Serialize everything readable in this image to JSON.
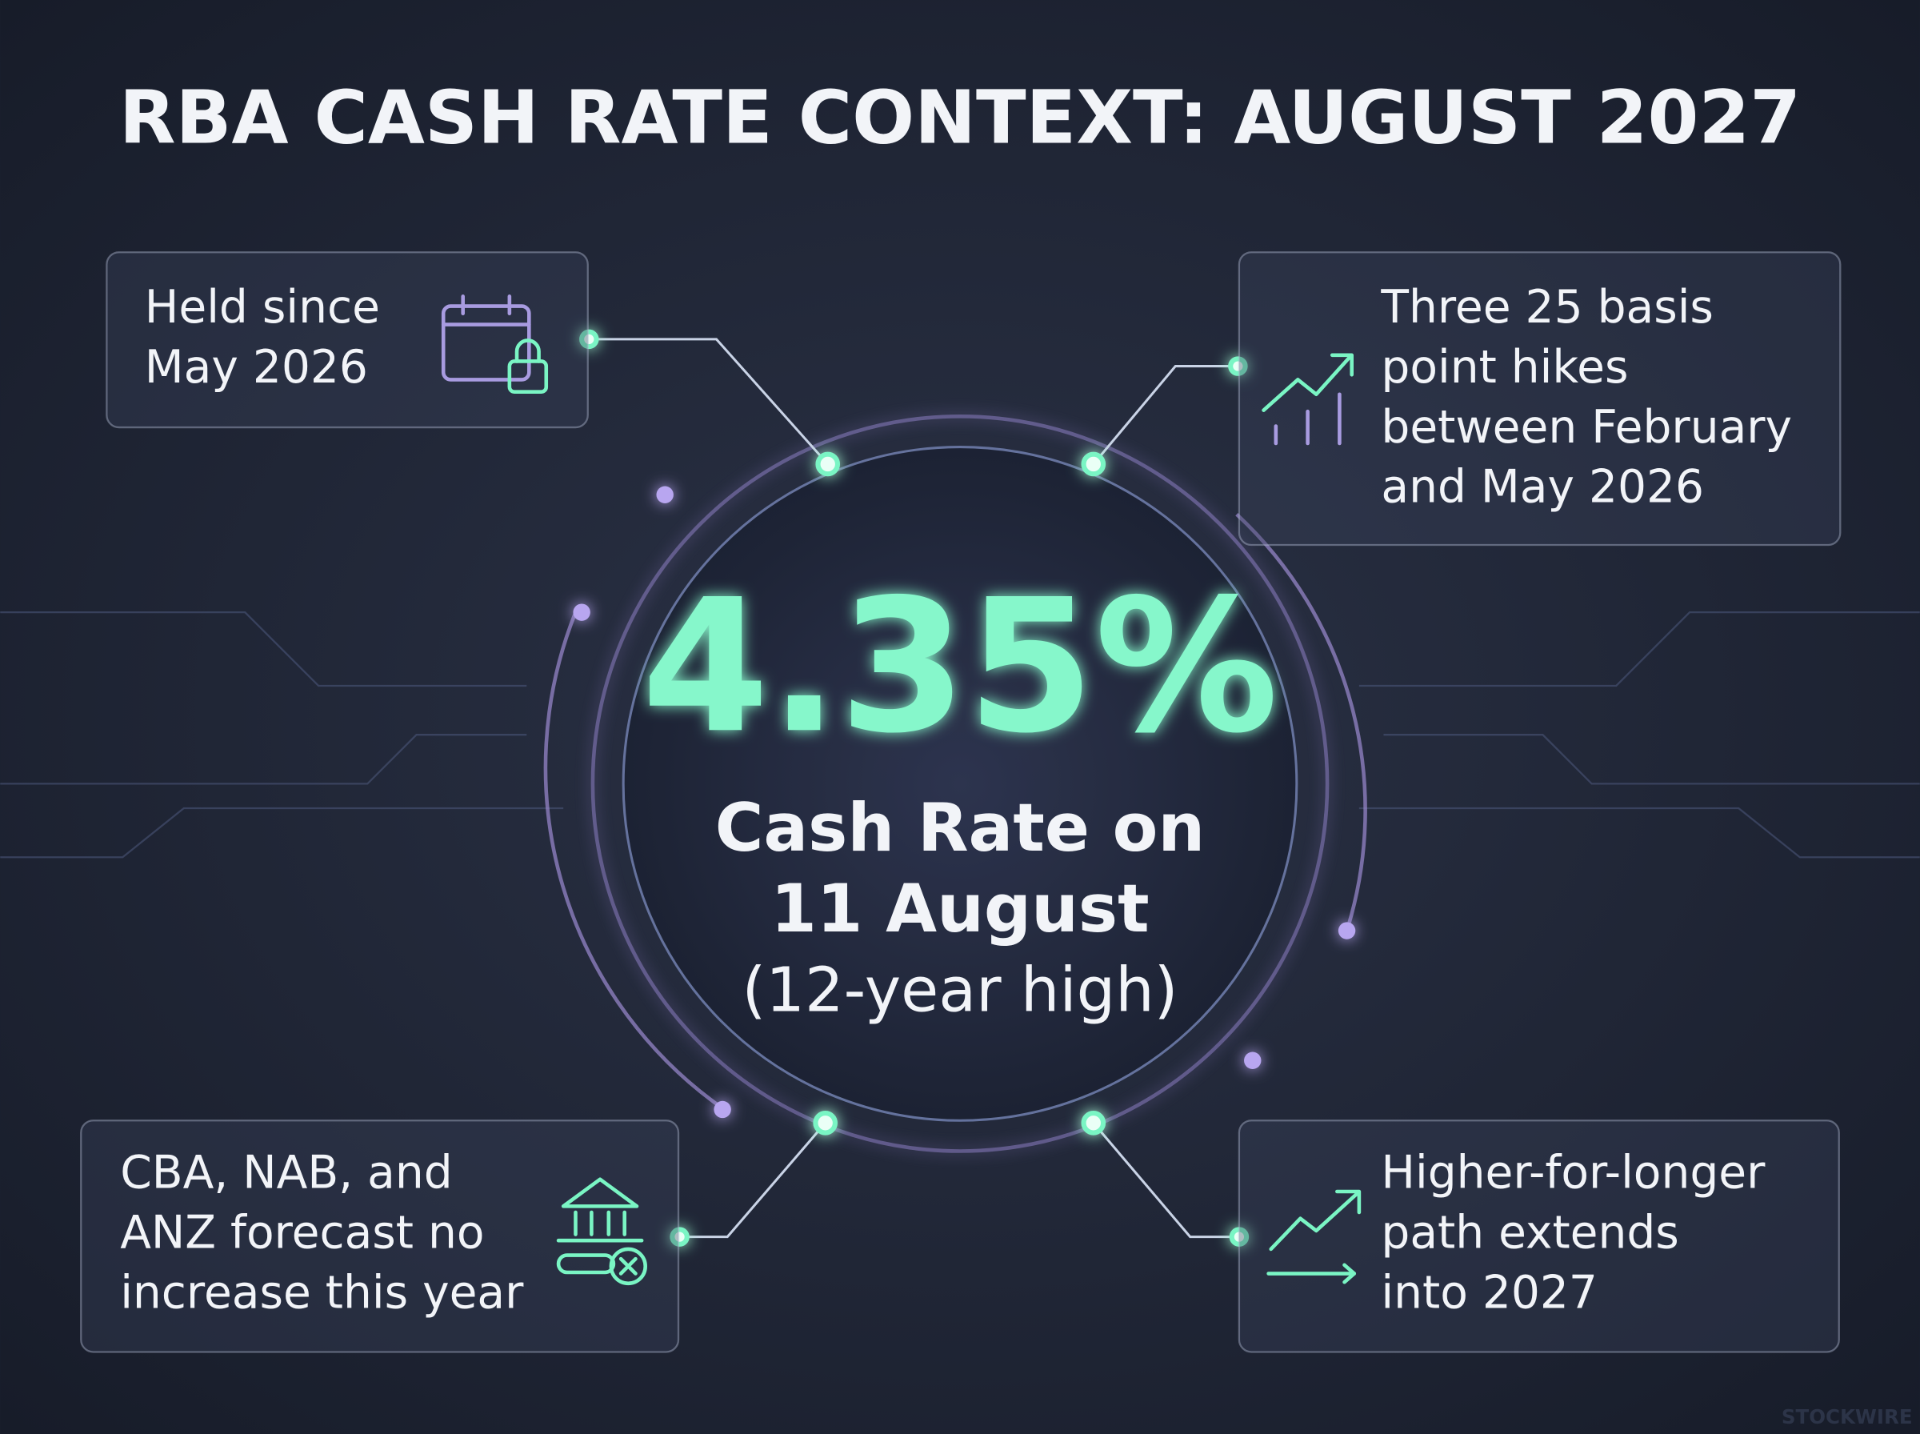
{
  "header": {
    "title": "RBA CASH RATE CONTEXT: AUGUST 2027"
  },
  "center": {
    "value": "4.35%",
    "lines": [
      "Cash Rate on",
      "11 August",
      "(12-year high)"
    ]
  },
  "cards": [
    {
      "lines": [
        "Held since",
        "May 2026"
      ]
    },
    {
      "lines": [
        "Three 25 basis",
        "point hikes",
        "between February",
        "and May 2026"
      ]
    },
    {
      "lines": [
        "CBA, NAB, and",
        "ANZ forecast no",
        "increase this year"
      ]
    },
    {
      "lines": [
        "Higher-for-longer",
        "path extends",
        "into 2027"
      ]
    }
  ],
  "watermark": "STOCKWIRE"
}
